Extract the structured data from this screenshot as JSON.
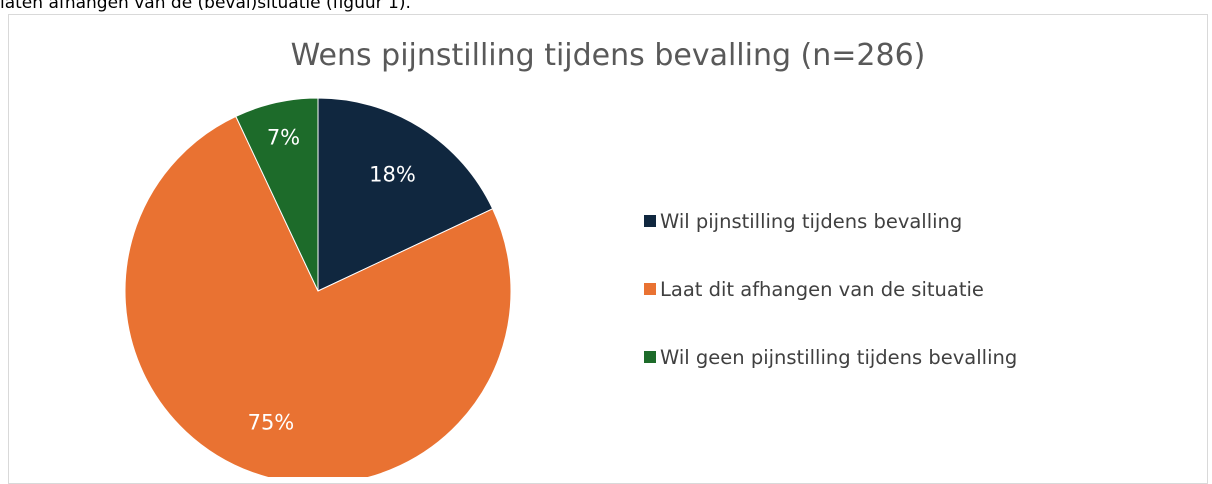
{
  "intro_text": "laten afhangen van de (beval)situatie (figuur 1).",
  "colors": {
    "navy": "#10273F",
    "orange": "#E97232",
    "green": "#1D6B2A"
  },
  "chart_data": {
    "type": "pie",
    "title": "Wens pijnstilling tijdens bevalling (n=286)",
    "slices": [
      {
        "label": "Wil pijnstilling tijdens bevalling",
        "value": 18,
        "display": "18%",
        "color": "#10273F"
      },
      {
        "label": "Laat dit afhangen van de situatie",
        "value": 75,
        "display": "75%",
        "color": "#E97232"
      },
      {
        "label": "Wil geen pijnstilling tijdens bevalling",
        "value": 7,
        "display": "7%",
        "color": "#1D6B2A"
      }
    ],
    "legend_position": "right"
  }
}
